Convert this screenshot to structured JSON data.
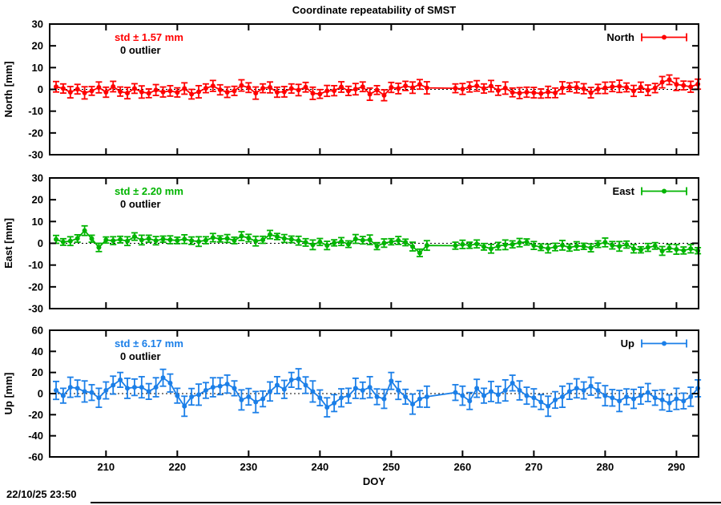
{
  "title": "Coordinate repeatability of SMST",
  "xlabel": "DOY",
  "timestamp": "22/10/25 23:50",
  "chart_data": [
    {
      "type": "line",
      "name": "North",
      "legend": "North",
      "color": "#ff0000",
      "ylabel": "North [mm]",
      "std_label": "std ± 1.57 mm",
      "outlier_label": "0 outlier",
      "ylim": [
        -30,
        30
      ],
      "yticks": [
        30,
        20,
        10,
        0,
        -10,
        -20,
        -30
      ],
      "xlim": [
        202.1,
        293.1
      ],
      "xticks": [
        210,
        220,
        230,
        240,
        250,
        260,
        270,
        280,
        290
      ],
      "show_x_tick_labels": false,
      "x": [
        203,
        204,
        205,
        206,
        207,
        208,
        209,
        210,
        211,
        212,
        213,
        214,
        215,
        216,
        217,
        218,
        219,
        220,
        221,
        222,
        223,
        224,
        225,
        226,
        227,
        228,
        229,
        230,
        231,
        232,
        233,
        234,
        235,
        236,
        237,
        238,
        239,
        240,
        241,
        242,
        243,
        244,
        245,
        246,
        247,
        248,
        249,
        250,
        251,
        252,
        253,
        254,
        255,
        259,
        260,
        261,
        262,
        263,
        264,
        265,
        266,
        267,
        268,
        269,
        270,
        271,
        272,
        273,
        274,
        275,
        276,
        277,
        278,
        279,
        280,
        281,
        282,
        283,
        284,
        285,
        286,
        287,
        288,
        289,
        290,
        291,
        292,
        293
      ],
      "y": [
        1.2,
        0.4,
        -1.3,
        0.1,
        -1.6,
        -0.7,
        0.9,
        -1.3,
        1.3,
        -1.0,
        -1.7,
        0.4,
        -1.2,
        -1.8,
        -0.3,
        -1.2,
        -0.7,
        -1.4,
        0.4,
        -2.2,
        -1.1,
        0.5,
        1.6,
        -0.2,
        -1.3,
        -0.7,
        1.8,
        0.8,
        -1.7,
        0.5,
        0.9,
        -1.3,
        -1.1,
        0.4,
        -0.3,
        1.0,
        -1.8,
        -2.1,
        -0.7,
        -0.6,
        1.1,
        -0.7,
        0.1,
        1.2,
        -2.2,
        -0.3,
        -2.7,
        0.9,
        0.4,
        1.6,
        0.8,
        2.3,
        0.7,
        0.5,
        0.2,
        1.1,
        1.6,
        0.4,
        1.5,
        -0.5,
        0.6,
        -1.4,
        -1.7,
        -1.3,
        -1.5,
        -1.9,
        -1.2,
        -1.6,
        0.7,
        1.0,
        0.9,
        0.3,
        -1.5,
        0.2,
        0.7,
        1.2,
        1.4,
        0.9,
        -0.7,
        1.0,
        -0.4,
        0.6,
        3.3,
        4.4,
        2.3,
        1.8,
        1.2,
        2.4
      ],
      "yerr": [
        2.4,
        2.1,
        2.6,
        2.2,
        2.8,
        2.0,
        2.5,
        2.3,
        2.4,
        2.1,
        2.6,
        2.2,
        2.8,
        2.0,
        2.5,
        2.3,
        2.4,
        2.1,
        2.6,
        2.2,
        2.8,
        2.0,
        2.5,
        2.3,
        2.4,
        2.1,
        2.6,
        2.2,
        2.8,
        2.0,
        2.5,
        2.3,
        2.4,
        2.1,
        2.6,
        2.2,
        2.8,
        2.0,
        2.5,
        2.3,
        2.4,
        2.1,
        2.6,
        2.2,
        2.8,
        2.0,
        2.5,
        2.3,
        2.4,
        2.1,
        2.6,
        2.2,
        2.8,
        2.0,
        2.5,
        2.3,
        2.4,
        2.1,
        2.6,
        2.2,
        2.8,
        2.0,
        2.5,
        2.3,
        2.4,
        2.1,
        2.6,
        2.2,
        2.8,
        2.0,
        2.5,
        2.3,
        2.4,
        2.1,
        2.6,
        2.2,
        2.8,
        2.0,
        2.5,
        2.3,
        2.4,
        2.1,
        2.6,
        2.2,
        2.8,
        2.0,
        2.5,
        2.3
      ]
    },
    {
      "type": "line",
      "name": "East",
      "legend": "East",
      "color": "#00b400",
      "ylabel": "East [mm]",
      "std_label": "std ± 2.20 mm",
      "outlier_label": "0 outlier",
      "ylim": [
        -30,
        30
      ],
      "yticks": [
        30,
        20,
        10,
        0,
        -10,
        -20,
        -30
      ],
      "xlim": [
        202.1,
        293.1
      ],
      "xticks": [
        210,
        220,
        230,
        240,
        250,
        260,
        270,
        280,
        290
      ],
      "show_x_tick_labels": false,
      "x": [
        203,
        204,
        205,
        206,
        207,
        208,
        209,
        210,
        211,
        212,
        213,
        214,
        215,
        216,
        217,
        218,
        219,
        220,
        221,
        222,
        223,
        224,
        225,
        226,
        227,
        228,
        229,
        230,
        231,
        232,
        233,
        234,
        235,
        236,
        237,
        238,
        239,
        240,
        241,
        242,
        243,
        244,
        245,
        246,
        247,
        248,
        249,
        250,
        251,
        252,
        253,
        254,
        255,
        259,
        260,
        261,
        262,
        263,
        264,
        265,
        266,
        267,
        268,
        269,
        270,
        271,
        272,
        273,
        274,
        275,
        276,
        277,
        278,
        279,
        280,
        281,
        282,
        283,
        284,
        285,
        286,
        287,
        288,
        289,
        290,
        291,
        292,
        293
      ],
      "y": [
        1.8,
        0.6,
        1.0,
        2.2,
        5.8,
        2.1,
        -1.9,
        1.5,
        1.2,
        1.7,
        1.0,
        3.1,
        1.5,
        2.1,
        1.2,
        1.9,
        1.6,
        1.3,
        1.9,
        1.2,
        0.8,
        1.4,
        2.6,
        2.0,
        2.2,
        1.3,
        3.3,
        2.4,
        1.0,
        1.6,
        4.0,
        3.1,
        2.2,
        1.8,
        1.2,
        0.4,
        -0.7,
        0.6,
        -1.0,
        0.2,
        0.8,
        -0.4,
        2.0,
        1.4,
        1.6,
        -1.3,
        0.1,
        0.7,
        1.3,
        0.4,
        -1.5,
        -4.4,
        -1.0,
        -1.1,
        -0.5,
        -0.9,
        -0.3,
        -1.6,
        -2.5,
        -1.3,
        -0.7,
        -0.5,
        0.3,
        0.6,
        -1.0,
        -1.8,
        -2.4,
        -1.7,
        -0.9,
        -2.0,
        -1.2,
        -1.4,
        -2.1,
        -0.4,
        0.4,
        -0.9,
        -1.4,
        -0.6,
        -2.5,
        -3.0,
        -1.9,
        -1.2,
        -3.5,
        -2.2,
        -2.8,
        -3.3,
        -2.5,
        -3.4
      ],
      "yerr": [
        1.8,
        1.5,
        2.0,
        1.7,
        2.2,
        1.6,
        1.9,
        1.4,
        1.8,
        1.5,
        2.0,
        1.7,
        2.2,
        1.6,
        1.9,
        1.4,
        1.8,
        1.5,
        2.0,
        1.7,
        2.2,
        1.6,
        1.9,
        1.4,
        1.8,
        1.5,
        2.0,
        1.7,
        2.2,
        1.6,
        1.9,
        1.4,
        1.8,
        1.5,
        2.0,
        1.7,
        2.2,
        1.6,
        1.9,
        1.4,
        1.8,
        1.5,
        2.0,
        1.7,
        2.2,
        1.6,
        1.9,
        1.4,
        1.8,
        1.5,
        2.0,
        1.7,
        2.2,
        1.6,
        1.9,
        1.4,
        1.8,
        1.5,
        2.0,
        1.7,
        2.2,
        1.6,
        1.9,
        1.4,
        1.8,
        1.5,
        2.0,
        1.7,
        2.2,
        1.6,
        1.9,
        1.4,
        1.8,
        1.5,
        2.0,
        1.7,
        2.2,
        1.6,
        1.9,
        1.4,
        1.8,
        1.5,
        2.0,
        1.7,
        2.2,
        1.6,
        1.9,
        1.4
      ]
    },
    {
      "type": "line",
      "name": "Up",
      "legend": "Up",
      "color": "#1b7fe8",
      "ylabel": "Up [mm]",
      "std_label": "std ± 6.17 mm",
      "outlier_label": "0 outlier",
      "ylim": [
        -60,
        60
      ],
      "yticks": [
        60,
        40,
        20,
        0,
        -20,
        -40,
        -60
      ],
      "xlim": [
        202.1,
        293.1
      ],
      "xticks": [
        210,
        220,
        230,
        240,
        250,
        260,
        270,
        280,
        290
      ],
      "show_x_tick_labels": true,
      "x": [
        203,
        204,
        205,
        206,
        207,
        208,
        209,
        210,
        211,
        212,
        213,
        214,
        215,
        216,
        217,
        218,
        219,
        220,
        221,
        222,
        223,
        224,
        225,
        226,
        227,
        228,
        229,
        230,
        231,
        232,
        233,
        234,
        235,
        236,
        237,
        238,
        239,
        240,
        241,
        242,
        243,
        244,
        245,
        246,
        247,
        248,
        249,
        250,
        251,
        252,
        253,
        254,
        255,
        259,
        260,
        261,
        262,
        263,
        264,
        265,
        266,
        267,
        268,
        269,
        270,
        271,
        272,
        273,
        274,
        275,
        276,
        277,
        278,
        279,
        280,
        281,
        282,
        283,
        284,
        285,
        286,
        287,
        288,
        289,
        290,
        291,
        292,
        293
      ],
      "y": [
        3,
        -2,
        6,
        5,
        2,
        1,
        -4,
        3,
        8,
        13,
        5,
        6,
        6,
        2,
        6,
        15,
        10,
        -2,
        -12,
        -3,
        -1,
        3,
        6,
        7,
        9,
        5,
        -6,
        -3,
        -8,
        -5,
        2,
        8,
        4,
        13,
        14,
        8,
        2,
        -4,
        -13,
        -9,
        -4,
        -2,
        5,
        3,
        6,
        -3,
        -5,
        12,
        3,
        -3,
        -10,
        -5,
        -3,
        1,
        -2,
        -7,
        5,
        -2,
        2,
        -1,
        3,
        10,
        3,
        -2,
        -4,
        -8,
        -12,
        -6,
        -3,
        2,
        5,
        3,
        7,
        3,
        -2,
        -4,
        -7,
        -3,
        -5,
        -2,
        1,
        -4,
        -6,
        -9,
        -5,
        -7,
        -3,
        5
      ],
      "yerr": [
        8.5,
        7.0,
        9.5,
        7.8,
        10.0,
        7.4,
        9.0,
        8.0,
        8.5,
        7.0,
        9.5,
        7.8,
        10.0,
        7.4,
        9.0,
        8.0,
        8.5,
        7.0,
        9.5,
        7.8,
        10.0,
        7.4,
        9.0,
        8.0,
        8.5,
        7.0,
        9.5,
        7.8,
        10.0,
        7.4,
        9.0,
        8.0,
        8.5,
        7.0,
        9.5,
        7.8,
        10.0,
        7.4,
        9.0,
        8.0,
        8.5,
        7.0,
        9.5,
        7.8,
        10.0,
        7.4,
        9.0,
        8.0,
        8.5,
        7.0,
        9.5,
        7.8,
        10.0,
        7.4,
        9.0,
        8.0,
        8.5,
        7.0,
        9.5,
        7.8,
        10.0,
        7.4,
        9.0,
        8.0,
        8.5,
        7.0,
        9.5,
        7.8,
        10.0,
        7.4,
        9.0,
        8.0,
        8.5,
        7.0,
        9.5,
        7.8,
        10.0,
        7.4,
        9.0,
        8.0,
        8.5,
        7.0,
        9.5,
        7.8,
        10.0,
        7.4,
        9.0,
        8.0
      ]
    }
  ]
}
